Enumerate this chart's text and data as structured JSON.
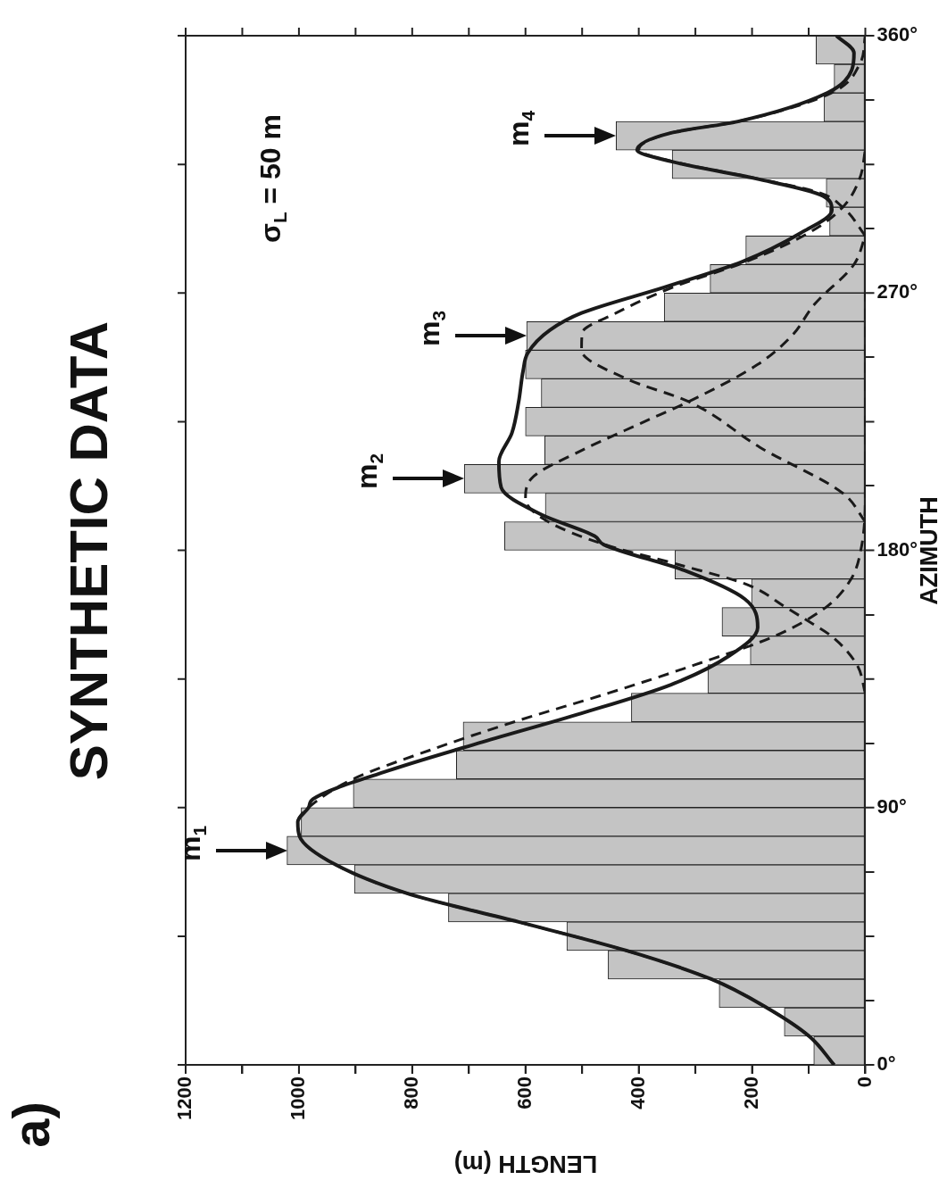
{
  "chart_data": {
    "type": "histogram",
    "orientation": "horizontal",
    "title": "SYNTHETIC DATA",
    "xlabel": "LENGTH (m)",
    "ylabel": "AZIMUTH",
    "bins": [
      0,
      10,
      20,
      30,
      40,
      50,
      60,
      70,
      80,
      90,
      100,
      110,
      120,
      130,
      140,
      150,
      160,
      170,
      180,
      190,
      200,
      210,
      220,
      230,
      240,
      250,
      260,
      270,
      280,
      290,
      300,
      310,
      320,
      330,
      340,
      350,
      360
    ],
    "values": [
      91,
      143,
      258,
      454,
      527,
      736,
      902,
      1021,
      996,
      904,
      722,
      710,
      413,
      278,
      203,
      253,
      201,
      336,
      637,
      565,
      708,
      566,
      600,
      572,
      600,
      598,
      355,
      274,
      211,
      63,
      69,
      341,
      440,
      73,
      55,
      87
    ],
    "color": "#c4c4c4",
    "series": [
      {
        "type": "line",
        "color": "#1a1a1a",
        "line_style": "solid",
        "x": [
          0,
          10,
          20,
          30,
          40,
          50,
          60,
          70,
          80,
          85,
          90,
          93,
          103,
          113,
          123,
          133,
          143,
          153,
          163,
          173,
          182,
          185,
          192.5,
          202,
          211,
          221,
          232,
          243,
          249,
          257,
          263,
          272,
          281,
          291,
          299,
          304,
          310,
          316,
          320,
          326,
          330,
          340,
          348,
          354,
          360
        ],
        "values": [
          55,
          99,
          174,
          272,
          422,
          612,
          809,
          935,
          999,
          1002,
          983,
          975,
          841,
          675,
          501,
          343,
          241,
          190,
          213,
          320,
          462,
          478,
          572,
          643,
          647,
          624,
          612,
          604,
          596,
          557,
          501,
          355,
          217,
          114,
          59,
          75,
          193,
          343,
          403,
          343,
          225,
          67,
          24,
          20,
          51
        ]
      },
      {
        "type": "line",
        "color": "#1a1a1a",
        "line_style": "dashed",
        "x": [
          0,
          10,
          20,
          30,
          40,
          50,
          60,
          70,
          80,
          85,
          90,
          100,
          110,
          120,
          130,
          140,
          150,
          160,
          170,
          180,
          200,
          240,
          270
        ],
        "values": [
          55,
          99,
          174,
          272,
          422,
          612,
          809,
          935,
          999,
          1002,
          983,
          904,
          770,
          620,
          454,
          300,
          160,
          70,
          25,
          8,
          0,
          0,
          0
        ]
      },
      {
        "type": "line",
        "color": "#1a1a1a",
        "line_style": "dashed",
        "x": [
          130,
          140,
          150,
          155,
          160,
          168,
          175,
          182,
          190,
          198,
          205,
          215,
          225,
          232,
          245,
          255,
          266,
          280,
          290
        ],
        "values": [
          0,
          15,
          60,
          99,
          140,
          209,
          330,
          460,
          560,
          600,
          590,
          500,
          390,
          312,
          190,
          130,
          90,
          20,
          0
        ]
      },
      {
        "type": "line",
        "color": "#1a1a1a",
        "line_style": "dashed",
        "x": [
          190,
          200,
          216,
          232,
          240,
          250,
          256,
          263,
          272,
          281,
          291,
          300,
          310,
          320
        ],
        "values": [
          0,
          40,
          186,
          312,
          422,
          501,
          500,
          440,
          340,
          210,
          100,
          40,
          10,
          0
        ]
      },
      {
        "type": "line",
        "color": "#1a1a1a",
        "line_style": "dashed",
        "x": [
          290,
          300,
          305,
          310,
          316,
          320,
          326,
          330,
          340,
          350,
          360
        ],
        "values": [
          0,
          40,
          80,
          190,
          340,
          400,
          343,
          225,
          60,
          10,
          0
        ]
      }
    ],
    "xlim": [
      1200,
      0
    ],
    "xticks": [
      1200,
      {
        "value": 1100,
        "label": null
      },
      1000,
      {
        "value": 900,
        "label": null
      },
      800,
      {
        "value": 700,
        "label": null
      },
      600,
      {
        "value": 500,
        "label": null
      },
      400,
      {
        "value": 300,
        "label": null
      },
      200,
      {
        "value": 100,
        "label": null
      },
      0
    ],
    "ylim": [
      0,
      360
    ],
    "yticks": [
      {
        "value": 0,
        "label": "0°"
      },
      {
        "value": 45,
        "label": null
      },
      {
        "value": 90,
        "label": "90°"
      },
      {
        "value": 135,
        "label": null
      },
      {
        "value": 180,
        "label": "180°"
      },
      {
        "value": 225,
        "label": null
      },
      {
        "value": 270,
        "label": "270°"
      },
      {
        "value": 315,
        "label": null
      },
      {
        "value": 360,
        "label": "360°"
      }
    ],
    "annotations": [
      "a)",
      "σ$_{L}$ = 50 m",
      {
        "text": "m$_{1}$",
        "x": 1021,
        "y": 75
      },
      {
        "text": "m$_{2}$",
        "x": 708,
        "y": 205
      },
      {
        "text": "m$_{3}$",
        "x": 598,
        "y": 255
      },
      {
        "text": "m$_{4}$",
        "x": 440,
        "y": 325
      }
    ],
    "grid": false,
    "legend": false
  }
}
